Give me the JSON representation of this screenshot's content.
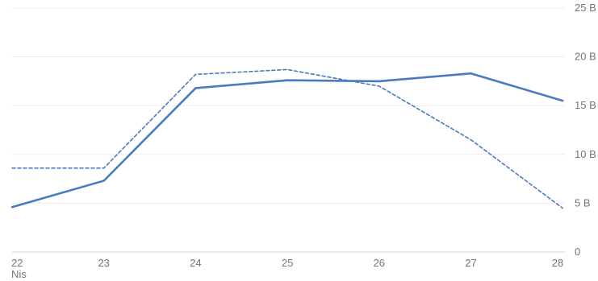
{
  "chart_data": {
    "type": "line",
    "x": [
      "22",
      "23",
      "24",
      "25",
      "26",
      "27",
      "28"
    ],
    "x_sublabels": [
      "Nis",
      "",
      "",
      "",
      "",
      "",
      ""
    ],
    "y_ticks": [
      0,
      5,
      10,
      15,
      20,
      25
    ],
    "y_tick_labels": [
      "0",
      "5 B",
      "10 B",
      "15 B",
      "20 B",
      "25 B"
    ],
    "ylim": [
      0,
      25
    ],
    "grid": true,
    "y_axis_side": "right",
    "series": [
      {
        "style": "solid",
        "color": "#4a7bbf",
        "values": [
          4.6,
          7.3,
          16.8,
          17.6,
          17.5,
          18.3,
          15.5
        ]
      },
      {
        "style": "dashed",
        "color": "#4a7bbf",
        "values": [
          8.6,
          8.6,
          18.2,
          18.7,
          17.0,
          11.5,
          4.5
        ]
      }
    ]
  }
}
